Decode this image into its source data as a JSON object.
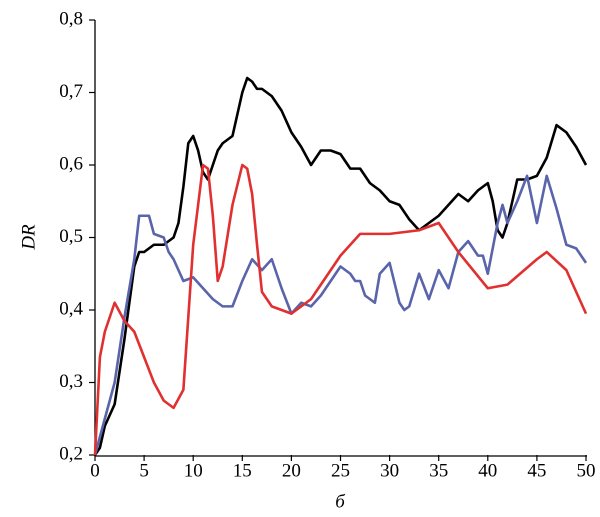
{
  "chart_data": {
    "type": "line",
    "xlabel": "б",
    "ylabel": "DR",
    "xlim": [
      0,
      50
    ],
    "xticks": [
      0,
      5,
      10,
      15,
      20,
      25,
      30,
      35,
      40,
      45,
      50
    ],
    "ylim": [
      0.2,
      0.8
    ],
    "yticks": [
      {
        "value": 0.2,
        "label": "0,2"
      },
      {
        "value": 0.3,
        "label": "0,3"
      },
      {
        "value": 0.4,
        "label": "0,4"
      },
      {
        "value": 0.5,
        "label": "0,5"
      },
      {
        "value": 0.6,
        "label": "0,6"
      },
      {
        "value": 0.7,
        "label": "0,7"
      },
      {
        "value": 0.8,
        "label": "0,8"
      }
    ],
    "series": [
      {
        "color": "#000000",
        "x": [
          0,
          0.5,
          1,
          2,
          3,
          4,
          4.5,
          5,
          6,
          7,
          8,
          8.5,
          9,
          9.5,
          10,
          10.5,
          11,
          11.5,
          12,
          12.5,
          13,
          14,
          14.5,
          15,
          15.5,
          16,
          16.5,
          17,
          18,
          19,
          20,
          21,
          22,
          23,
          24,
          25,
          26,
          27,
          28,
          29,
          30,
          31,
          32,
          33,
          34,
          35,
          36,
          37,
          38,
          39,
          40,
          40.5,
          41,
          41.5,
          42,
          43,
          44,
          45,
          46,
          47,
          48,
          49,
          50
        ],
        "values": [
          0.2,
          0.21,
          0.24,
          0.27,
          0.36,
          0.46,
          0.48,
          0.48,
          0.49,
          0.49,
          0.5,
          0.52,
          0.57,
          0.63,
          0.64,
          0.62,
          0.59,
          0.58,
          0.6,
          0.62,
          0.63,
          0.64,
          0.67,
          0.7,
          0.72,
          0.715,
          0.705,
          0.705,
          0.695,
          0.675,
          0.645,
          0.625,
          0.6,
          0.62,
          0.62,
          0.615,
          0.595,
          0.595,
          0.575,
          0.565,
          0.55,
          0.545,
          0.525,
          0.51,
          0.52,
          0.53,
          0.545,
          0.56,
          0.55,
          0.565,
          0.575,
          0.55,
          0.51,
          0.5,
          0.52,
          0.58,
          0.58,
          0.585,
          0.61,
          0.655,
          0.645,
          0.625,
          0.6
        ]
      },
      {
        "color": "#5a64aa",
        "x": [
          0,
          1,
          2,
          3,
          4,
          4.5,
          5,
          5.5,
          6,
          7,
          7.5,
          8,
          9,
          10,
          11,
          12,
          13,
          14,
          15,
          16,
          17,
          18,
          19,
          20,
          21,
          22,
          23,
          24,
          25,
          26,
          26.5,
          27,
          27.5,
          28,
          28.5,
          29,
          30,
          31,
          31.5,
          32,
          33,
          34,
          35,
          36,
          37,
          38,
          39,
          39.5,
          40,
          41,
          41.5,
          42,
          43,
          44,
          45,
          46,
          47,
          48,
          49,
          50
        ],
        "values": [
          0.2,
          0.25,
          0.3,
          0.39,
          0.47,
          0.53,
          0.53,
          0.53,
          0.505,
          0.5,
          0.48,
          0.47,
          0.44,
          0.445,
          0.43,
          0.415,
          0.405,
          0.405,
          0.44,
          0.47,
          0.455,
          0.47,
          0.43,
          0.395,
          0.41,
          0.405,
          0.42,
          0.44,
          0.46,
          0.45,
          0.44,
          0.44,
          0.42,
          0.415,
          0.41,
          0.45,
          0.465,
          0.41,
          0.4,
          0.405,
          0.45,
          0.415,
          0.455,
          0.43,
          0.48,
          0.495,
          0.475,
          0.475,
          0.45,
          0.52,
          0.545,
          0.52,
          0.55,
          0.585,
          0.52,
          0.585,
          0.54,
          0.49,
          0.485,
          0.465
        ]
      },
      {
        "color": "#e03030",
        "x": [
          0,
          0.5,
          1,
          2,
          3,
          4,
          6,
          7,
          8,
          9,
          10,
          11,
          11.5,
          12,
          12.5,
          13,
          14,
          15,
          15.5,
          16,
          16.5,
          17,
          18,
          19,
          20,
          22,
          25,
          27,
          30,
          33,
          35,
          37,
          40,
          42,
          45,
          46,
          48,
          50
        ],
        "values": [
          0.2,
          0.335,
          0.37,
          0.41,
          0.385,
          0.37,
          0.3,
          0.275,
          0.265,
          0.29,
          0.49,
          0.6,
          0.595,
          0.53,
          0.44,
          0.46,
          0.545,
          0.6,
          0.595,
          0.56,
          0.49,
          0.425,
          0.405,
          0.4,
          0.395,
          0.415,
          0.475,
          0.505,
          0.505,
          0.51,
          0.52,
          0.48,
          0.43,
          0.435,
          0.47,
          0.48,
          0.455,
          0.395
        ]
      }
    ]
  }
}
